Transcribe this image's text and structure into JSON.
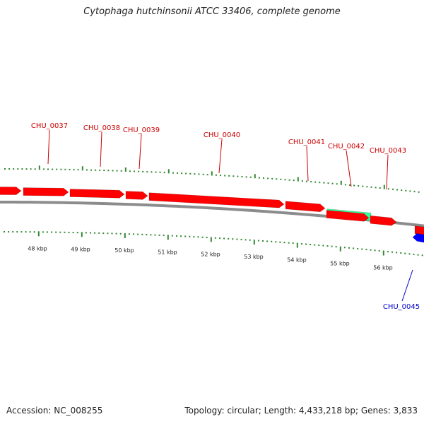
{
  "title": "Cytophaga hutchinsonii ATCC 33406, complete genome",
  "footer": {
    "accession": "Accession: NC_008255",
    "summary": "Topology: circular; Length: 4,433,218 bp; Genes: 3,833"
  },
  "colors": {
    "forward_gene": "#ff0000",
    "reverse_gene": "#0000ff",
    "rna_gene": "#33ff99",
    "forward_label": "#cc0000",
    "reverse_label": "#0000cc",
    "tick": "#338833",
    "backbone": "#8c8c8c"
  },
  "genes": [
    {
      "label": "",
      "strand": "forward",
      "kind": "cds"
    },
    {
      "label": "CHU_0037",
      "strand": "forward",
      "kind": "cds"
    },
    {
      "label": "CHU_0038",
      "strand": "forward",
      "kind": "cds"
    },
    {
      "label": "CHU_0039",
      "strand": "forward",
      "kind": "cds"
    },
    {
      "label": "CHU_0040",
      "strand": "forward",
      "kind": "cds"
    },
    {
      "label": "CHU_0041",
      "strand": "forward",
      "kind": "cds"
    },
    {
      "label": "CHU_0042",
      "strand": "forward",
      "kind": "rna"
    },
    {
      "label": "",
      "strand": "forward",
      "kind": "cds"
    },
    {
      "label": "CHU_0043",
      "strand": "forward",
      "kind": "cds"
    },
    {
      "label": "",
      "strand": "forward",
      "kind": "cds"
    },
    {
      "label": "CHU_0045",
      "strand": "reverse",
      "kind": "cds"
    }
  ],
  "kbp_ticks": [
    "48 kbp",
    "49 kbp",
    "50 kbp",
    "51 kbp",
    "52 kbp",
    "53 kbp",
    "54 kbp",
    "55 kbp",
    "56 kbp"
  ]
}
